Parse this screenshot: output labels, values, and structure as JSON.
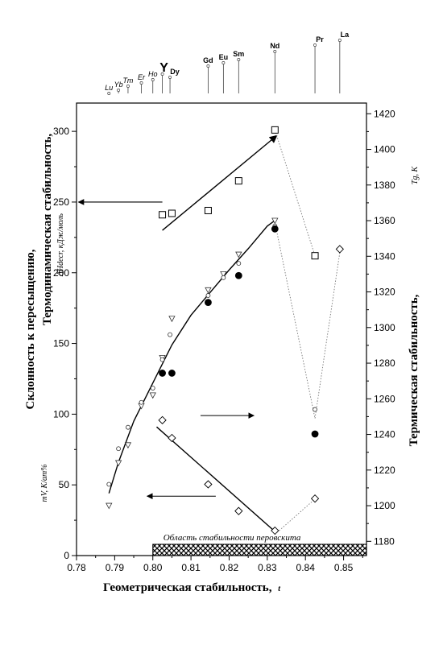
{
  "chart_data": {
    "type": "scatter",
    "title": "",
    "x_axis": {
      "label_main": "Геометрическая стабильность,",
      "label_symbol": "t",
      "range": [
        0.78,
        0.856
      ],
      "ticks": [
        0.78,
        0.79,
        0.8,
        0.81,
        0.82,
        0.83,
        0.84,
        0.85
      ],
      "tick_labels": [
        "0.78",
        "0.79",
        "0.80",
        "0.81",
        "0.82",
        "0.83",
        "0.84",
        "0.85"
      ]
    },
    "y_left": {
      "label_outer": "Склонность к пересыщению,",
      "label_outer_sub": "mV, K/ат%",
      "label_inner": "Термодинамическая стабильность,",
      "label_inner_sub": "ΔHdecr, кДж/моль",
      "range": [
        0,
        320
      ],
      "ticks": [
        0,
        50,
        100,
        150,
        200,
        250,
        300
      ],
      "tick_labels": [
        "0",
        "50",
        "100",
        "150",
        "200",
        "250",
        "300"
      ]
    },
    "y_right": {
      "label_main": "Термическая стабильность,",
      "label_sub": "Tg, K",
      "range": [
        1172,
        1426
      ],
      "ticks": [
        1180,
        1200,
        1220,
        1240,
        1260,
        1280,
        1300,
        1320,
        1340,
        1360,
        1380,
        1400,
        1420
      ],
      "tick_labels": [
        "1180",
        "1200",
        "1220",
        "1240",
        "1260",
        "1280",
        "1300",
        "1320",
        "1340",
        "1360",
        "1380",
        "1400",
        "1420"
      ]
    },
    "stability_region": {
      "label": "Область стабильности перовскита",
      "x_range": [
        0.8,
        0.856
      ]
    },
    "elements": [
      {
        "name": "Lu",
        "t": 0.7885,
        "style": "italic"
      },
      {
        "name": "Yb",
        "t": 0.791,
        "style": "italic"
      },
      {
        "name": "Tm",
        "t": 0.7935,
        "style": "italic"
      },
      {
        "name": "Er",
        "t": 0.797,
        "style": "italic"
      },
      {
        "name": "Ho",
        "t": 0.8,
        "style": "italic"
      },
      {
        "name": "Y",
        "t": 0.8025,
        "style": "big"
      },
      {
        "name": "Dy",
        "t": 0.8045,
        "style": "bold"
      },
      {
        "name": "Gd",
        "t": 0.8145,
        "style": "bold"
      },
      {
        "name": "Eu",
        "t": 0.8185,
        "style": "bold"
      },
      {
        "name": "Sm",
        "t": 0.8225,
        "style": "bold"
      },
      {
        "name": "Nd",
        "t": 0.832,
        "style": "bold"
      },
      {
        "name": "Pr",
        "t": 0.8425,
        "style": "bold"
      },
      {
        "name": "La",
        "t": 0.849,
        "style": "bold"
      }
    ],
    "series": [
      {
        "marker": "square",
        "axis": "left",
        "points": [
          [
            0.8025,
            241
          ],
          [
            0.805,
            242
          ],
          [
            0.8145,
            244
          ],
          [
            0.8225,
            265
          ],
          [
            0.832,
            301
          ],
          [
            0.8425,
            212
          ]
        ]
      },
      {
        "marker": "triangle-down",
        "axis": "right",
        "points": [
          [
            0.7885,
            1200
          ],
          [
            0.791,
            1224
          ],
          [
            0.7935,
            1234
          ],
          [
            0.797,
            1256
          ],
          [
            0.8,
            1262
          ],
          [
            0.8025,
            1283
          ],
          [
            0.805,
            1305
          ],
          [
            0.8145,
            1321
          ],
          [
            0.8185,
            1330
          ],
          [
            0.8225,
            1341
          ],
          [
            0.832,
            1360
          ]
        ]
      },
      {
        "marker": "circle-open",
        "axis": "right",
        "points": [
          [
            0.7885,
            1212
          ],
          [
            0.791,
            1232
          ],
          [
            0.7935,
            1244
          ],
          [
            0.797,
            1258
          ],
          [
            0.8,
            1266
          ],
          [
            0.8025,
            1282
          ],
          [
            0.8045,
            1296
          ],
          [
            0.8145,
            1318
          ],
          [
            0.8185,
            1328
          ],
          [
            0.8225,
            1336
          ],
          [
            0.832,
            1357
          ],
          [
            0.8425,
            1254
          ]
        ]
      },
      {
        "marker": "circle-filled",
        "axis": "left",
        "points": [
          [
            0.8025,
            129
          ],
          [
            0.805,
            129
          ],
          [
            0.8145,
            179
          ],
          [
            0.8225,
            198
          ],
          [
            0.832,
            231
          ],
          [
            0.8425,
            86
          ]
        ]
      },
      {
        "marker": "diamond",
        "axis": "right",
        "points": [
          [
            0.8025,
            1248
          ],
          [
            0.805,
            1238
          ],
          [
            0.8145,
            1212
          ],
          [
            0.8225,
            1197
          ],
          [
            0.832,
            1186
          ],
          [
            0.8425,
            1204
          ],
          [
            0.849,
            1344
          ]
        ]
      }
    ],
    "fit_lines": [
      {
        "axis": "left",
        "kind": "curve",
        "points": [
          [
            0.7885,
            44
          ],
          [
            0.791,
            66
          ],
          [
            0.795,
            95
          ],
          [
            0.8,
            122
          ],
          [
            0.805,
            149
          ],
          [
            0.81,
            170
          ],
          [
            0.815,
            186
          ],
          [
            0.82,
            202
          ],
          [
            0.825,
            217
          ],
          [
            0.83,
            233
          ],
          [
            0.832,
            237
          ]
        ]
      },
      {
        "axis": "left",
        "kind": "arrow",
        "points": [
          [
            0.8025,
            230
          ],
          [
            0.8325,
            297
          ]
        ]
      },
      {
        "axis": "left",
        "kind": "line",
        "points": [
          [
            0.801,
            91
          ],
          [
            0.832,
            17
          ]
        ]
      }
    ],
    "dotted_lines": [
      {
        "axis": "left",
        "points": [
          [
            0.832,
            301
          ],
          [
            0.8425,
            212
          ]
        ]
      },
      {
        "axis": "right",
        "points": [
          [
            0.832,
            1359
          ],
          [
            0.8425,
            1249
          ],
          [
            0.849,
            1342
          ]
        ]
      },
      {
        "axis": "left",
        "points": [
          [
            0.832,
            15
          ],
          [
            0.8425,
            40
          ]
        ]
      }
    ],
    "direction_arrows": [
      {
        "axis": "left",
        "from": [
          0.8025,
          250
        ],
        "to": [
          0.7805,
          250
        ]
      },
      {
        "axis": "left",
        "from": [
          0.8125,
          99
        ],
        "to": [
          0.8265,
          99
        ]
      },
      {
        "axis": "left",
        "from": [
          0.8165,
          42
        ],
        "to": [
          0.7985,
          42
        ]
      }
    ]
  }
}
